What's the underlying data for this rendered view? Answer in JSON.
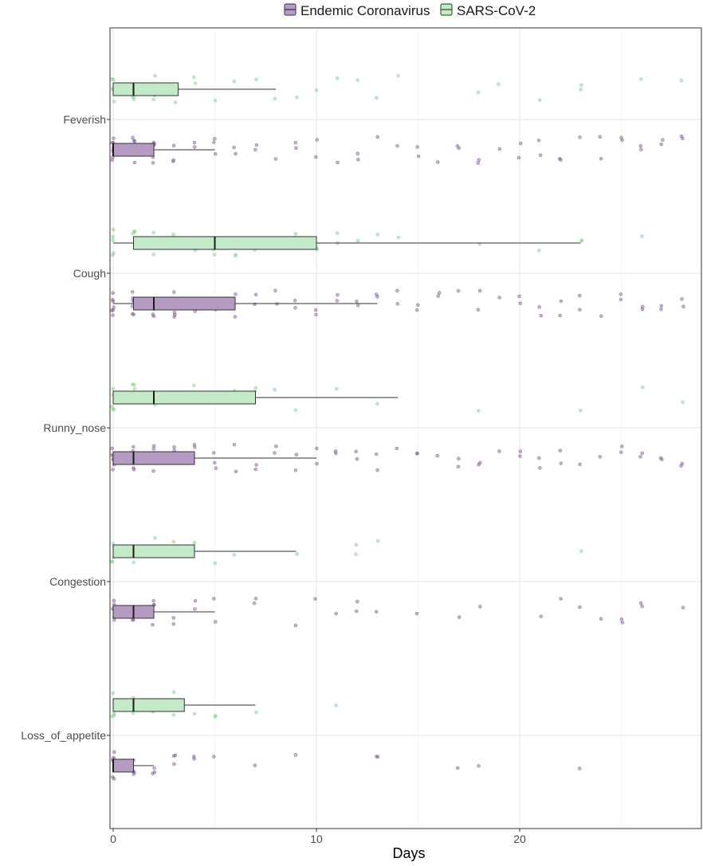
{
  "chart_data": {
    "type": "boxplot",
    "orientation": "horizontal",
    "title": "",
    "xlabel": "Days",
    "ylabel": "",
    "xlim": [
      -0.2,
      29.1
    ],
    "x_ticks": [
      0,
      10,
      20
    ],
    "grid": true,
    "legend_position": "top",
    "legend": [
      {
        "name": "Endemic Coronavirus",
        "color": "#9467a8",
        "fill": "#b59bc4"
      },
      {
        "name": "SARS-CoV-2",
        "color": "#6cc77a",
        "fill": "#c3eac6"
      }
    ],
    "categories": [
      "Feverish",
      "Cough",
      "Runny_nose",
      "Congestion",
      "Loss_of_appetite"
    ],
    "series": [
      {
        "name": "Endemic Coronavirus",
        "boxes": [
          {
            "category": "Feverish",
            "whisker_low": 0,
            "q1": 0,
            "median": 0,
            "q3": 2,
            "whisker_high": 5,
            "points": [
              0,
              0,
              0,
              0,
              0,
              0,
              0,
              0,
              1,
              1,
              1,
              1,
              1,
              1,
              1,
              2,
              2,
              2,
              2,
              2,
              3,
              3,
              3,
              4,
              4,
              5,
              5,
              5,
              6,
              6,
              7,
              7,
              8,
              9,
              9,
              10,
              10,
              11,
              12,
              12,
              13,
              14,
              15,
              15,
              16,
              17,
              17,
              18,
              18,
              19,
              20,
              20,
              21,
              21,
              22,
              22,
              23,
              24,
              24,
              25,
              25,
              26,
              26,
              27,
              27,
              28,
              28
            ]
          },
          {
            "category": "Cough",
            "whisker_low": 0,
            "q1": 1,
            "median": 2,
            "q3": 6,
            "whisker_high": 13,
            "points": [
              0,
              0,
              0,
              0,
              0,
              0,
              0,
              1,
              1,
              1,
              1,
              1,
              1,
              1,
              2,
              2,
              2,
              2,
              2,
              2,
              3,
              3,
              3,
              3,
              4,
              4,
              4,
              5,
              5,
              5,
              6,
              6,
              7,
              7,
              8,
              8,
              9,
              9,
              10,
              10,
              11,
              11,
              12,
              12,
              13,
              13,
              14,
              14,
              15,
              15,
              16,
              16,
              17,
              18,
              18,
              19,
              20,
              20,
              21,
              21,
              22,
              22,
              23,
              23,
              24,
              25,
              25,
              26,
              26,
              27,
              27,
              28,
              28
            ]
          },
          {
            "category": "Runny_nose",
            "whisker_low": 0,
            "q1": 0,
            "median": 1,
            "q3": 4,
            "whisker_high": 10,
            "points": [
              0,
              0,
              0,
              0,
              0,
              0,
              0,
              1,
              1,
              1,
              1,
              1,
              1,
              2,
              2,
              2,
              2,
              2,
              3,
              3,
              3,
              3,
              4,
              4,
              4,
              5,
              5,
              5,
              6,
              6,
              7,
              7,
              8,
              8,
              9,
              9,
              10,
              10,
              11,
              11,
              12,
              12,
              13,
              13,
              14,
              15,
              15,
              16,
              17,
              17,
              18,
              18,
              19,
              20,
              20,
              21,
              21,
              22,
              22,
              23,
              24,
              25,
              25,
              26,
              26,
              27,
              27,
              28,
              28
            ]
          },
          {
            "category": "Congestion",
            "whisker_low": 0,
            "q1": 0,
            "median": 1,
            "q3": 2,
            "whisker_high": 5,
            "points": [
              0,
              0,
              0,
              0,
              0,
              0,
              1,
              1,
              1,
              1,
              1,
              2,
              2,
              2,
              2,
              3,
              3,
              4,
              4,
              5,
              5,
              7,
              7,
              9,
              10,
              11,
              12,
              12,
              13,
              15,
              17,
              18,
              21,
              22,
              23,
              24,
              25,
              25,
              26,
              26,
              28
            ]
          },
          {
            "category": "Loss_of_appetite",
            "whisker_low": 0,
            "q1": 0,
            "median": 0,
            "q3": 1,
            "whisker_high": 2,
            "points": [
              0,
              0,
              0,
              0,
              0,
              0,
              1,
              1,
              1,
              1,
              2,
              2,
              2,
              3,
              3,
              3,
              4,
              4,
              5,
              7,
              9,
              13,
              13,
              17,
              18,
              23
            ]
          }
        ]
      },
      {
        "name": "SARS-CoV-2",
        "boxes": [
          {
            "category": "Feverish",
            "whisker_low": 0,
            "q1": 0,
            "median": 1,
            "q3": 3.2,
            "whisker_high": 8,
            "points": [
              0,
              0,
              0,
              0,
              0,
              0,
              1,
              1,
              1,
              1,
              1,
              2,
              2,
              2,
              2,
              3,
              3,
              4,
              4,
              5,
              6,
              7,
              8,
              9,
              10,
              11,
              12,
              13,
              14,
              18,
              19,
              21,
              23,
              23,
              26,
              28
            ]
          },
          {
            "category": "Cough",
            "whisker_low": 0,
            "q1": 1,
            "median": 5,
            "q3": 10,
            "whisker_high": 23,
            "points": [
              0,
              0,
              0,
              0,
              0,
              1,
              1,
              1,
              2,
              2,
              2,
              3,
              3,
              4,
              4,
              5,
              5,
              6,
              6,
              7,
              7,
              8,
              8,
              9,
              9,
              10,
              10,
              11,
              11,
              12,
              13,
              14,
              18,
              21,
              23,
              23,
              26
            ]
          },
          {
            "category": "Runny_nose",
            "whisker_low": 0,
            "q1": 0,
            "median": 2,
            "q3": 7,
            "whisker_high": 14,
            "points": [
              0,
              0,
              0,
              0,
              0,
              1,
              1,
              1,
              2,
              2,
              2,
              3,
              3,
              4,
              4,
              5,
              5,
              6,
              7,
              7,
              8,
              9,
              11,
              13,
              18,
              23,
              26,
              28
            ]
          },
          {
            "category": "Congestion",
            "whisker_low": 0,
            "q1": 0,
            "median": 1,
            "q3": 4,
            "whisker_high": 9,
            "points": [
              0,
              0,
              0,
              0,
              0,
              1,
              1,
              1,
              2,
              2,
              3,
              3,
              4,
              5,
              6,
              9,
              12,
              12,
              13,
              23
            ]
          },
          {
            "category": "Loss_of_appetite",
            "whisker_low": 0,
            "q1": 0,
            "median": 1,
            "q3": 3.5,
            "whisker_high": 7,
            "points": [
              0,
              0,
              0,
              0,
              1,
              1,
              1,
              2,
              2,
              3,
              3,
              4,
              5,
              5,
              7,
              11
            ]
          }
        ]
      }
    ]
  }
}
